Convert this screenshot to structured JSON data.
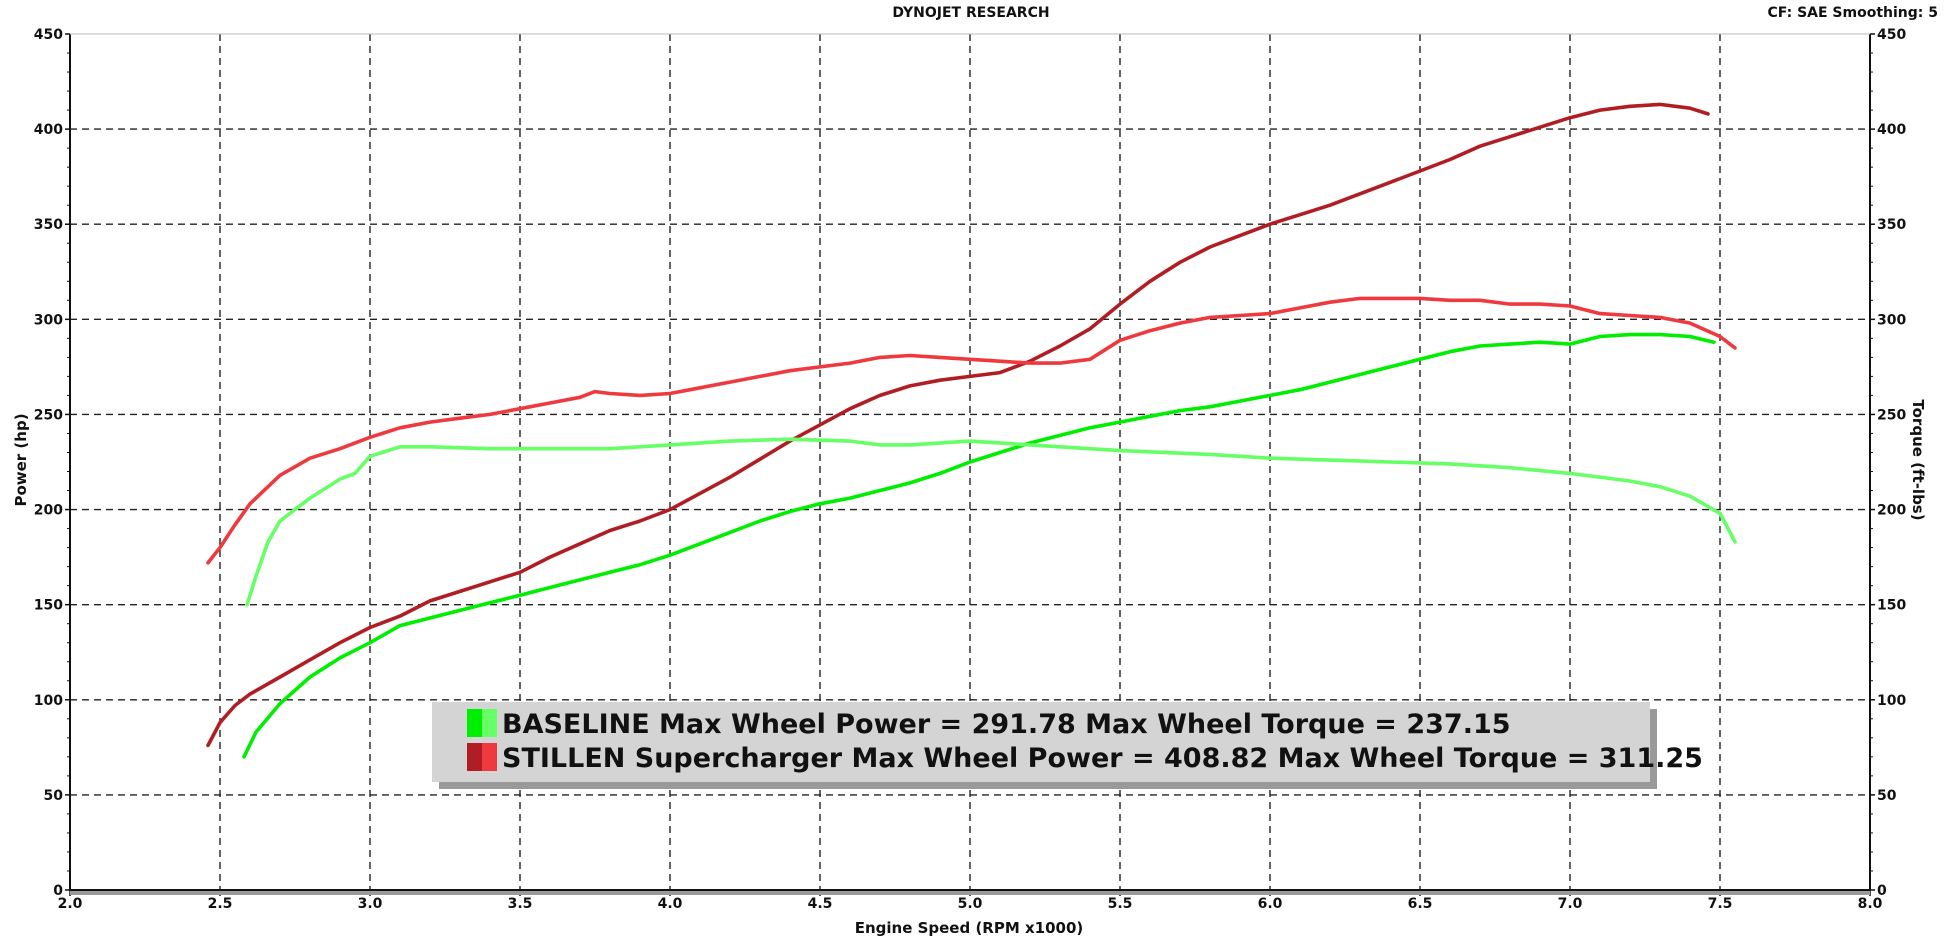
{
  "header": {
    "title": "DYNOJET RESEARCH",
    "info": "CF: SAE  Smoothing: 5"
  },
  "legend": {
    "entries": [
      {
        "text": "BASELINE Max Wheel Power = 291.78 Max Wheel Torque = 237.15",
        "color_dark": "#00ee00",
        "color_light": "#66ff66"
      },
      {
        "text": "STILLEN Supercharger Max Wheel Power = 408.82 Max Wheel Torque = 311.25",
        "color_dark": "#b01e24",
        "color_light": "#ee3a3e"
      }
    ]
  },
  "chart_data": {
    "type": "line",
    "title": "DYNOJET RESEARCH",
    "xlabel": "Engine Speed (RPM x1000)",
    "ylabel": "Power (hp)",
    "y2label": "Torque (ft-lbs)",
    "xlim": [
      2.0,
      8.0
    ],
    "ylim": [
      0,
      450
    ],
    "y2lim": [
      0,
      450
    ],
    "grid": true,
    "x_ticks": [
      "2.0",
      "2.5",
      "3.0",
      "3.5",
      "4.0",
      "4.5",
      "5.0",
      "5.5",
      "6.0",
      "6.5",
      "7.0",
      "7.5",
      "8.0"
    ],
    "y_ticks": [
      "0",
      "50",
      "100",
      "150",
      "200",
      "250",
      "300",
      "350",
      "400",
      "450"
    ],
    "series": [
      {
        "name": "STILLEN Supercharger Power",
        "axis": "left",
        "color": "#b01e24",
        "x": [
          2.46,
          2.5,
          2.55,
          2.6,
          2.7,
          2.8,
          2.9,
          3.0,
          3.1,
          3.2,
          3.3,
          3.4,
          3.5,
          3.6,
          3.7,
          3.8,
          3.9,
          4.0,
          4.2,
          4.4,
          4.6,
          4.7,
          4.8,
          4.9,
          5.0,
          5.1,
          5.2,
          5.3,
          5.4,
          5.5,
          5.6,
          5.7,
          5.8,
          5.9,
          6.0,
          6.1,
          6.2,
          6.3,
          6.4,
          6.5,
          6.6,
          6.7,
          6.8,
          6.9,
          7.0,
          7.1,
          7.2,
          7.3,
          7.4,
          7.46
        ],
        "y": [
          76,
          88,
          97,
          103,
          112,
          121,
          130,
          138,
          144,
          152,
          157,
          162,
          167,
          175,
          182,
          189,
          194,
          200,
          217,
          236,
          253,
          260,
          265,
          268,
          270,
          272,
          278,
          286,
          295,
          308,
          320,
          330,
          338,
          344,
          350,
          355,
          360,
          366,
          372,
          378,
          384,
          391,
          396,
          401,
          406,
          410,
          412,
          413,
          411,
          408
        ]
      },
      {
        "name": "STILLEN Supercharger Torque",
        "axis": "right",
        "color": "#ee3a3e",
        "x": [
          2.46,
          2.5,
          2.55,
          2.6,
          2.7,
          2.8,
          2.9,
          3.0,
          3.1,
          3.2,
          3.3,
          3.4,
          3.5,
          3.6,
          3.7,
          3.75,
          3.8,
          3.9,
          4.0,
          4.1,
          4.2,
          4.3,
          4.4,
          4.5,
          4.6,
          4.7,
          4.8,
          4.9,
          5.0,
          5.1,
          5.2,
          5.3,
          5.4,
          5.5,
          5.6,
          5.7,
          5.8,
          5.9,
          6.0,
          6.1,
          6.2,
          6.3,
          6.4,
          6.5,
          6.6,
          6.7,
          6.8,
          6.9,
          7.0,
          7.1,
          7.2,
          7.3,
          7.4,
          7.5,
          7.55
        ],
        "y": [
          172,
          180,
          192,
          203,
          218,
          227,
          232,
          238,
          243,
          246,
          248,
          250,
          253,
          256,
          259,
          262,
          261,
          260,
          261,
          264,
          267,
          270,
          273,
          275,
          277,
          280,
          281,
          280,
          279,
          278,
          277,
          277,
          279,
          289,
          294,
          298,
          301,
          302,
          303,
          306,
          309,
          311,
          311,
          311,
          310,
          310,
          308,
          308,
          307,
          303,
          302,
          301,
          298,
          291,
          285
        ]
      },
      {
        "name": "BASELINE Power",
        "axis": "left",
        "color": "#00ee00",
        "x": [
          2.58,
          2.62,
          2.7,
          2.8,
          2.9,
          3.0,
          3.1,
          3.2,
          3.3,
          3.4,
          3.5,
          3.6,
          3.7,
          3.8,
          3.9,
          4.0,
          4.1,
          4.2,
          4.3,
          4.4,
          4.5,
          4.6,
          4.7,
          4.8,
          4.9,
          5.0,
          5.1,
          5.2,
          5.3,
          5.4,
          5.5,
          5.6,
          5.7,
          5.8,
          5.9,
          6.0,
          6.1,
          6.2,
          6.3,
          6.4,
          6.5,
          6.6,
          6.7,
          6.8,
          6.9,
          7.0,
          7.1,
          7.2,
          7.3,
          7.4,
          7.48
        ],
        "y": [
          70,
          83,
          98,
          112,
          122,
          130,
          139,
          143,
          147,
          151,
          155,
          159,
          163,
          167,
          171,
          176,
          182,
          188,
          194,
          199,
          203,
          206,
          210,
          214,
          219,
          225,
          230,
          235,
          239,
          243,
          246,
          249,
          252,
          254,
          257,
          260,
          263,
          267,
          271,
          275,
          279,
          283,
          286,
          287,
          288,
          287,
          291,
          292,
          292,
          291,
          288
        ]
      },
      {
        "name": "BASELINE Torque",
        "axis": "right",
        "color": "#66ff66",
        "x": [
          2.59,
          2.62,
          2.66,
          2.7,
          2.8,
          2.9,
          2.95,
          3.0,
          3.1,
          3.2,
          3.4,
          3.6,
          3.8,
          4.0,
          4.2,
          4.4,
          4.6,
          4.7,
          4.8,
          5.0,
          5.2,
          5.5,
          5.8,
          6.0,
          6.2,
          6.4,
          6.6,
          6.8,
          7.0,
          7.2,
          7.3,
          7.4,
          7.5,
          7.55
        ],
        "y": [
          150,
          165,
          183,
          194,
          206,
          216,
          219,
          228,
          233,
          233,
          232,
          232,
          232,
          234,
          236,
          237,
          236,
          234,
          234,
          236,
          234,
          231,
          229,
          227,
          226,
          225,
          224,
          222,
          219,
          215,
          212,
          207,
          198,
          183
        ]
      }
    ]
  }
}
